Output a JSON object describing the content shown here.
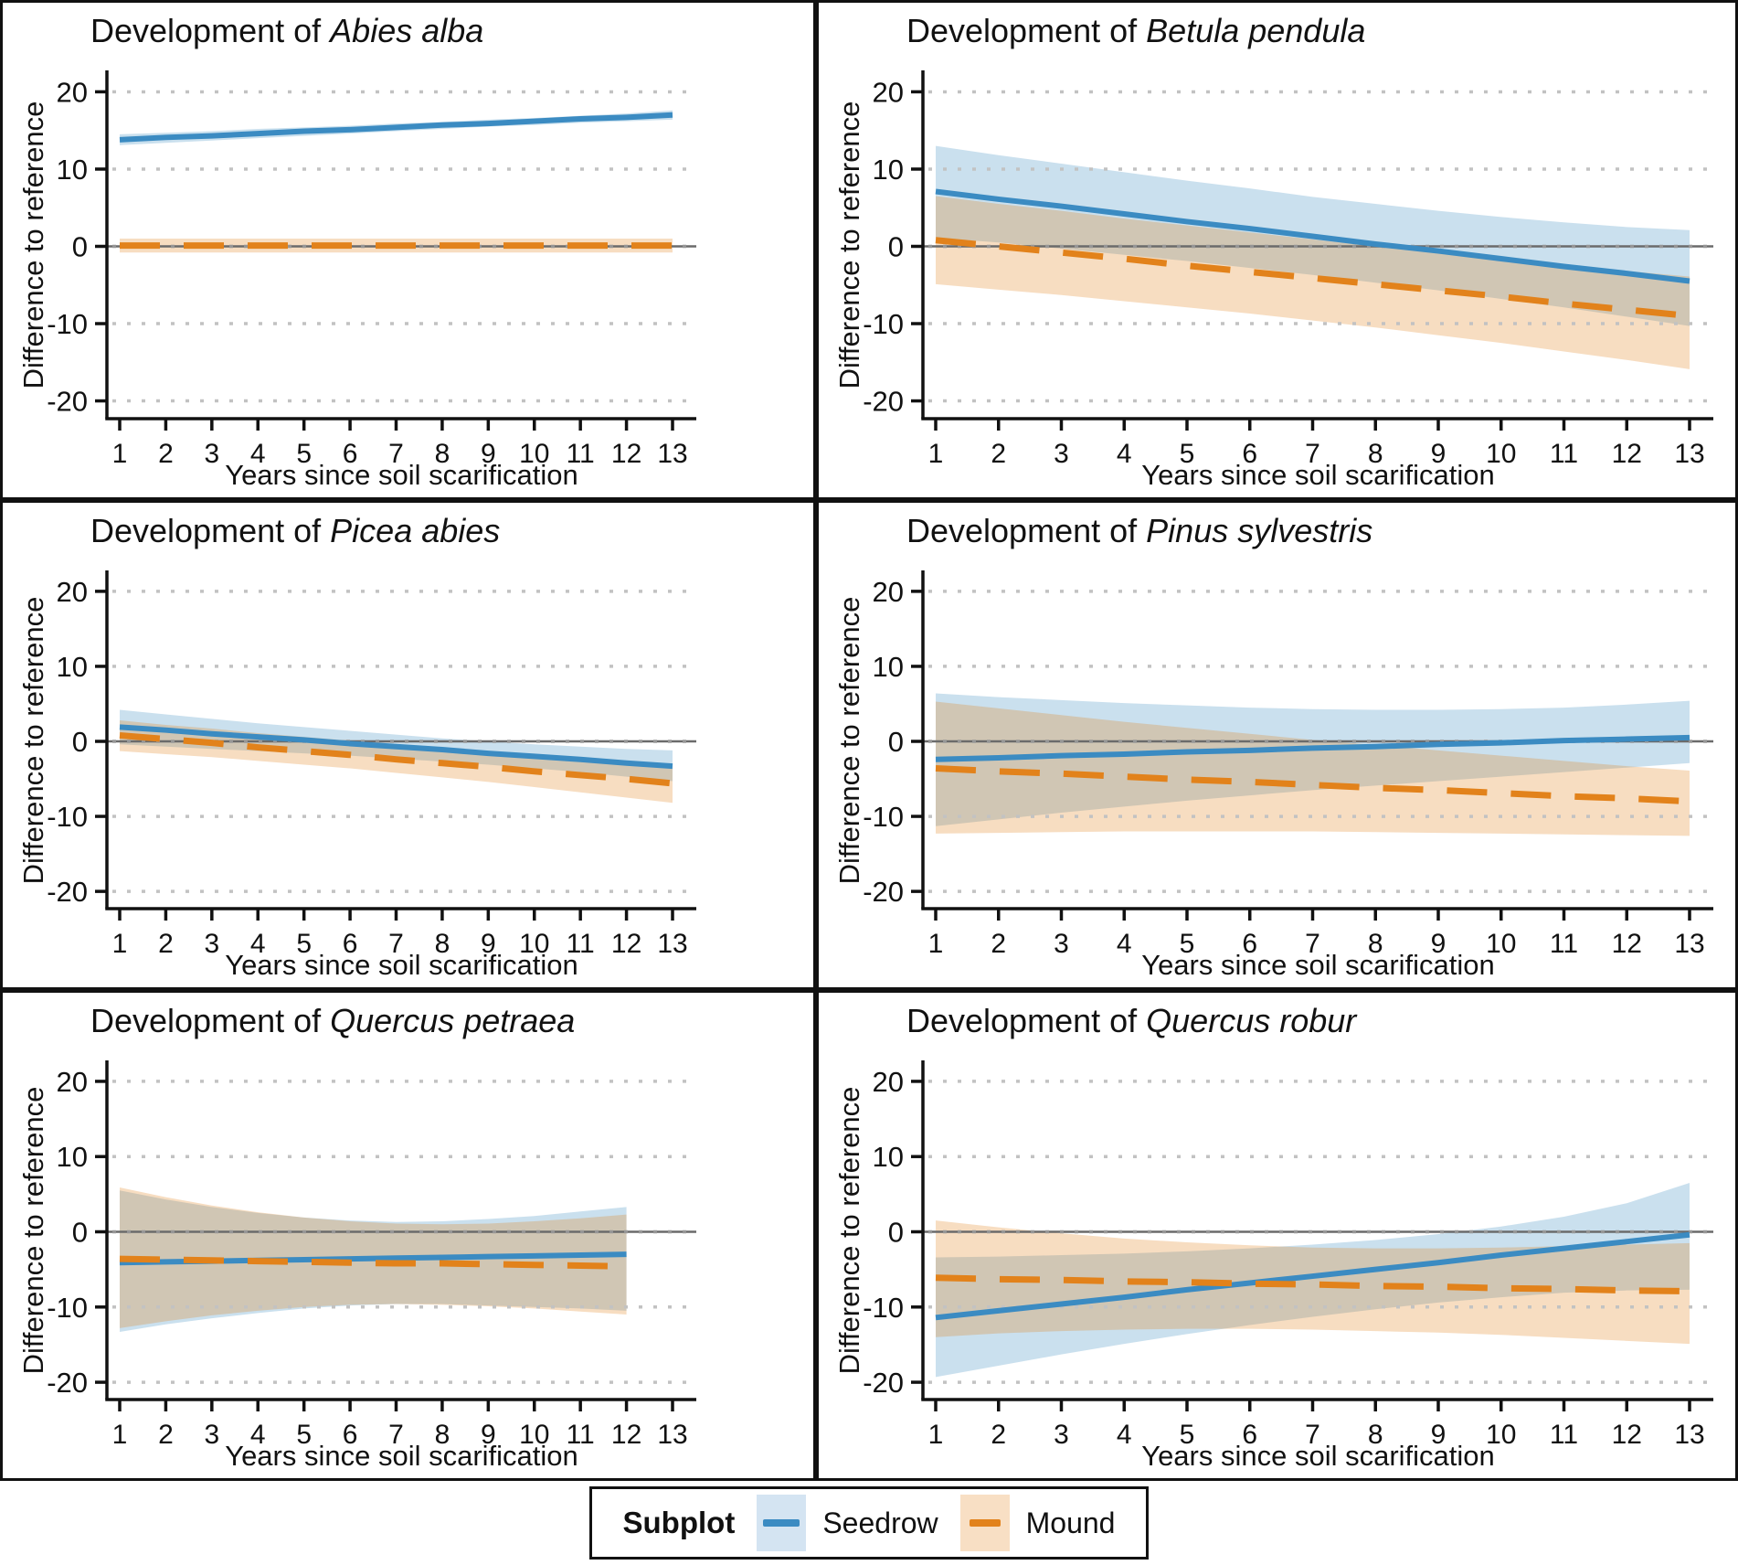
{
  "figure": {
    "title_prefix": "Development of ",
    "x_label": "Years since soil scarification",
    "y_label": "Difference to reference",
    "x_ticks": [
      1,
      2,
      3,
      4,
      5,
      6,
      7,
      8,
      9,
      10,
      11,
      12,
      13
    ],
    "y_ticks": [
      20,
      10,
      0,
      -10,
      -20
    ],
    "ylim": [
      -22.3,
      22.3
    ]
  },
  "legend": {
    "title": "Subplot",
    "items": [
      {
        "label": "Seedrow",
        "line_color": "#3B8BC2",
        "fill_color": "#D4E4F2",
        "line_style": "solid"
      },
      {
        "label": "Mound",
        "line_color": "#E2821B",
        "fill_color": "#F8DFC4",
        "line_style": "dashed"
      }
    ]
  },
  "colors": {
    "seedrow_line": "#3B8BC2",
    "seedrow_ribbon": "rgba(59,139,194,0.27)",
    "mound_line": "#E2821B",
    "mound_ribbon": "rgba(226,130,27,0.27)",
    "zero_line": "#6B6B6B",
    "gridline": "#C2C2C2",
    "gridline_zero": "#969696",
    "axis": "#111111"
  },
  "chart_data": [
    {
      "type": "line",
      "species": "Abies alba",
      "x": [
        1,
        2,
        3,
        4,
        5,
        6,
        7,
        8,
        9,
        10,
        11,
        12,
        13
      ],
      "series": [
        {
          "name": "Seedrow",
          "values": [
            13.8,
            14.1,
            14.3,
            14.6,
            14.9,
            15.1,
            15.4,
            15.7,
            15.9,
            16.2,
            16.5,
            16.7,
            17.0
          ],
          "upper": [
            14.5,
            14.7,
            14.9,
            15.2,
            15.4,
            15.6,
            15.9,
            16.1,
            16.4,
            16.6,
            16.9,
            17.2,
            17.6
          ],
          "lower": [
            13.1,
            13.4,
            13.7,
            14.0,
            14.3,
            14.6,
            14.9,
            15.2,
            15.5,
            15.7,
            16.0,
            16.2,
            16.4
          ]
        },
        {
          "name": "Mound",
          "values": [
            0.1,
            0.1,
            0.1,
            0.1,
            0.1,
            0.1,
            0.1,
            0.1,
            0.1,
            0.1,
            0.1,
            0.1,
            0.1
          ],
          "upper": [
            1.0,
            1.0,
            1.0,
            1.0,
            1.0,
            1.0,
            1.0,
            1.0,
            1.0,
            1.0,
            1.0,
            1.0,
            1.0
          ],
          "lower": [
            -0.8,
            -0.8,
            -0.8,
            -0.8,
            -0.8,
            -0.8,
            -0.8,
            -0.8,
            -0.8,
            -0.8,
            -0.8,
            -0.8,
            -0.8
          ]
        }
      ]
    },
    {
      "type": "line",
      "species": "Betula pendula",
      "x": [
        1,
        2,
        3,
        4,
        5,
        6,
        7,
        8,
        9,
        10,
        11,
        12,
        13
      ],
      "series": [
        {
          "name": "Seedrow",
          "values": [
            7.1,
            6.1,
            5.2,
            4.2,
            3.2,
            2.3,
            1.3,
            0.3,
            -0.6,
            -1.6,
            -2.6,
            -3.5,
            -4.5
          ],
          "upper": [
            13.0,
            11.8,
            10.7,
            9.6,
            8.5,
            7.5,
            6.4,
            5.5,
            4.6,
            3.8,
            3.1,
            2.5,
            2.1
          ],
          "lower": [
            1.1,
            0.5,
            -0.3,
            -1.1,
            -1.9,
            -2.8,
            -3.7,
            -4.7,
            -5.7,
            -6.8,
            -7.9,
            -9.1,
            -10.3
          ]
        },
        {
          "name": "Mound",
          "values": [
            0.8,
            0.0,
            -0.8,
            -1.6,
            -2.5,
            -3.3,
            -4.1,
            -4.9,
            -5.7,
            -6.5,
            -7.4,
            -8.2,
            -9.0
          ],
          "upper": [
            6.5,
            5.5,
            4.6,
            3.6,
            2.7,
            1.8,
            0.9,
            0.0,
            -0.9,
            -1.7,
            -2.5,
            -3.2,
            -3.9
          ],
          "lower": [
            -4.9,
            -5.6,
            -6.3,
            -7.1,
            -7.9,
            -8.7,
            -9.6,
            -10.5,
            -11.5,
            -12.5,
            -13.6,
            -14.7,
            -15.9
          ]
        }
      ]
    },
    {
      "type": "line",
      "species": "Picea abies",
      "x": [
        1,
        2,
        3,
        4,
        5,
        6,
        7,
        8,
        9,
        10,
        11,
        12,
        13
      ],
      "series": [
        {
          "name": "Seedrow",
          "values": [
            1.9,
            1.5,
            1.0,
            0.6,
            0.2,
            -0.3,
            -0.7,
            -1.1,
            -1.6,
            -2.0,
            -2.4,
            -2.9,
            -3.3
          ],
          "upper": [
            4.2,
            3.6,
            3.0,
            2.4,
            1.9,
            1.4,
            0.9,
            0.4,
            0.0,
            -0.4,
            -0.7,
            -1.0,
            -1.2
          ],
          "lower": [
            -0.4,
            -0.7,
            -1.0,
            -1.3,
            -1.6,
            -1.9,
            -2.3,
            -2.7,
            -3.1,
            -3.6,
            -4.1,
            -4.7,
            -5.3
          ]
        },
        {
          "name": "Mound",
          "values": [
            0.8,
            0.3,
            -0.2,
            -0.8,
            -1.3,
            -1.8,
            -2.4,
            -2.9,
            -3.4,
            -4.0,
            -4.5,
            -5.0,
            -5.6
          ],
          "upper": [
            2.8,
            2.2,
            1.7,
            1.1,
            0.6,
            0.1,
            -0.5,
            -1.0,
            -1.5,
            -2.0,
            -2.5,
            -3.0,
            -3.5
          ],
          "lower": [
            -1.3,
            -1.7,
            -2.1,
            -2.6,
            -3.1,
            -3.6,
            -4.2,
            -4.8,
            -5.4,
            -6.1,
            -6.8,
            -7.5,
            -8.2
          ]
        }
      ]
    },
    {
      "type": "line",
      "species": "Pinus sylvestris",
      "x": [
        1,
        2,
        3,
        4,
        5,
        6,
        7,
        8,
        9,
        10,
        11,
        12,
        13
      ],
      "series": [
        {
          "name": "Seedrow",
          "values": [
            -2.4,
            -2.2,
            -1.9,
            -1.7,
            -1.4,
            -1.2,
            -0.9,
            -0.7,
            -0.4,
            -0.2,
            0.1,
            0.3,
            0.5
          ],
          "upper": [
            6.4,
            5.9,
            5.5,
            5.1,
            4.8,
            4.5,
            4.3,
            4.2,
            4.2,
            4.3,
            4.5,
            4.9,
            5.4
          ],
          "lower": [
            -11.3,
            -10.4,
            -9.5,
            -8.7,
            -7.9,
            -7.2,
            -6.5,
            -5.9,
            -5.3,
            -4.7,
            -4.1,
            -3.5,
            -2.9
          ]
        },
        {
          "name": "Mound",
          "values": [
            -3.6,
            -4.0,
            -4.3,
            -4.7,
            -5.1,
            -5.4,
            -5.8,
            -6.2,
            -6.5,
            -6.9,
            -7.3,
            -7.6,
            -8.0
          ],
          "upper": [
            5.3,
            4.4,
            3.5,
            2.6,
            1.8,
            1.0,
            0.2,
            -0.5,
            -1.2,
            -1.9,
            -2.6,
            -3.3,
            -3.9
          ],
          "lower": [
            -12.3,
            -12.2,
            -12.1,
            -12.0,
            -12.0,
            -12.0,
            -12.0,
            -12.1,
            -12.2,
            -12.3,
            -12.4,
            -12.5,
            -12.6
          ]
        }
      ]
    },
    {
      "type": "line",
      "species": "Quercus petraea",
      "x": [
        1,
        2,
        3,
        4,
        5,
        6,
        7,
        8,
        9,
        10,
        11,
        12
      ],
      "series": [
        {
          "name": "Seedrow",
          "values": [
            -4.1,
            -4.0,
            -3.9,
            -3.8,
            -3.7,
            -3.6,
            -3.5,
            -3.4,
            -3.3,
            -3.2,
            -3.1,
            -3.0
          ],
          "upper": [
            5.5,
            4.3,
            3.3,
            2.5,
            1.9,
            1.5,
            1.3,
            1.4,
            1.7,
            2.1,
            2.7,
            3.3
          ],
          "lower": [
            -13.3,
            -12.3,
            -11.5,
            -10.8,
            -10.2,
            -9.8,
            -9.6,
            -9.6,
            -9.8,
            -10.0,
            -10.2,
            -10.5
          ]
        },
        {
          "name": "Mound",
          "values": [
            -3.6,
            -3.7,
            -3.8,
            -3.9,
            -4.0,
            -4.1,
            -4.2,
            -4.2,
            -4.3,
            -4.4,
            -4.5,
            -4.6
          ],
          "upper": [
            5.9,
            4.6,
            3.5,
            2.6,
            1.9,
            1.4,
            1.1,
            1.0,
            1.1,
            1.4,
            1.8,
            2.3
          ],
          "lower": [
            -12.8,
            -11.9,
            -11.1,
            -10.5,
            -10.0,
            -9.7,
            -9.6,
            -9.7,
            -9.9,
            -10.2,
            -10.6,
            -11.0
          ]
        }
      ]
    },
    {
      "type": "line",
      "species": "Quercus robur",
      "x": [
        1,
        2,
        3,
        4,
        5,
        6,
        7,
        8,
        9,
        10,
        11,
        12,
        13
      ],
      "series": [
        {
          "name": "Seedrow",
          "values": [
            -11.4,
            -10.5,
            -9.6,
            -8.7,
            -7.7,
            -6.8,
            -5.9,
            -5.0,
            -4.1,
            -3.1,
            -2.2,
            -1.3,
            -0.4
          ],
          "upper": [
            -3.4,
            -3.3,
            -3.1,
            -2.9,
            -2.6,
            -2.2,
            -1.7,
            -1.1,
            -0.3,
            0.7,
            2.0,
            3.8,
            6.5
          ],
          "lower": [
            -19.3,
            -17.8,
            -16.3,
            -14.9,
            -13.6,
            -12.4,
            -11.3,
            -10.3,
            -9.4,
            -8.7,
            -8.1,
            -7.8,
            -7.7
          ]
        },
        {
          "name": "Mound",
          "values": [
            -6.1,
            -6.3,
            -6.4,
            -6.6,
            -6.7,
            -6.9,
            -7.0,
            -7.2,
            -7.3,
            -7.5,
            -7.6,
            -7.8,
            -7.9
          ],
          "upper": [
            1.5,
            0.6,
            -0.2,
            -0.9,
            -1.4,
            -1.8,
            -2.1,
            -2.2,
            -2.2,
            -2.1,
            -1.9,
            -1.7,
            -1.5
          ],
          "lower": [
            -14.0,
            -13.5,
            -13.2,
            -13.0,
            -12.9,
            -12.9,
            -13.0,
            -13.2,
            -13.4,
            -13.7,
            -14.1,
            -14.5,
            -14.9
          ]
        }
      ]
    }
  ]
}
